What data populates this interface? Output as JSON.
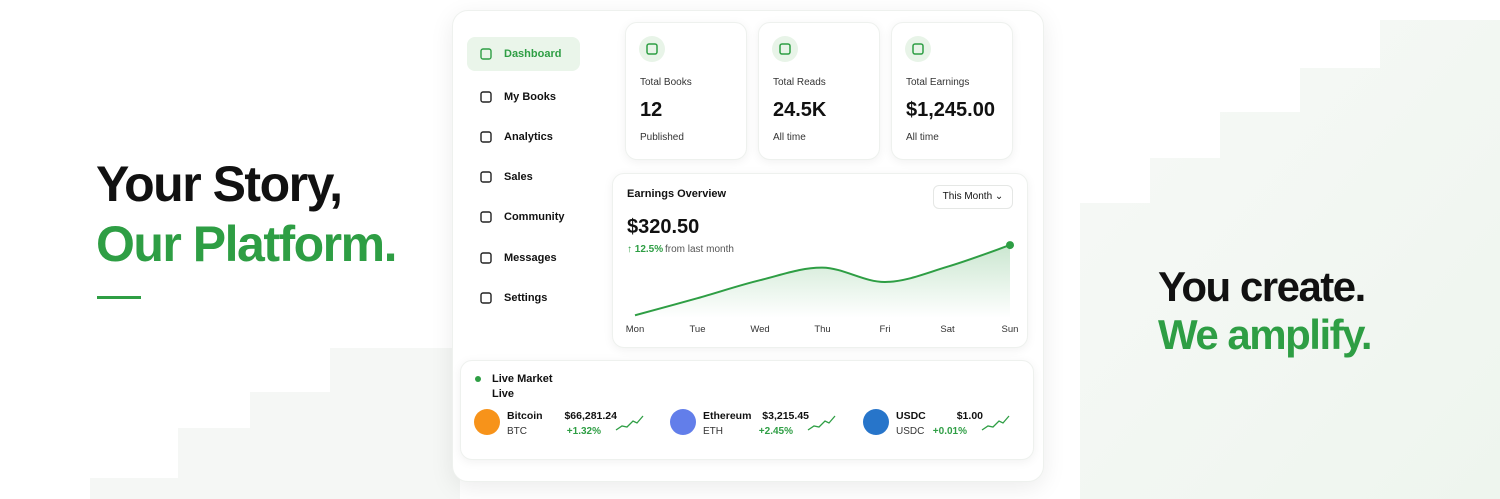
{
  "hero": {
    "line1": "Your Story,",
    "line2": "Our Platform.",
    "right1": "You create.",
    "right2": "We amplify."
  },
  "sidebar": {
    "items": [
      "Dashboard",
      "My Books",
      "Analytics",
      "Sales",
      "Community",
      "Messages",
      "Settings"
    ]
  },
  "stats": [
    {
      "label": "Total Books",
      "value": "12",
      "sub": "Published"
    },
    {
      "label": "Total Reads",
      "value": "24.5K",
      "sub": "All time"
    },
    {
      "label": "Total Earnings",
      "value": "$1,245.00",
      "sub": "All time"
    }
  ],
  "earnings": {
    "amount": "$320.50",
    "change": "↑ 12.5%",
    "change_text": "from last month",
    "dropdown": "This Month"
  },
  "chart_data": {
    "type": "line",
    "title": "Earnings Overview",
    "categories": [
      "Mon",
      "Tue",
      "Wed",
      "Thu",
      "Fri",
      "Sat",
      "Sun"
    ],
    "values": [
      3,
      22,
      42,
      56,
      40,
      57,
      81
    ],
    "ylim": [
      0,
      100
    ],
    "color": "#2e9e44"
  },
  "market": {
    "title": "Live Market",
    "subtitle": "Live",
    "coins": [
      {
        "name": "Bitcoin",
        "symbol": "BTC",
        "price": "$66,281.24",
        "change": "+1.32%"
      },
      {
        "name": "Ethereum",
        "symbol": "ETH",
        "price": "$3,215.45",
        "change": "+2.45%"
      },
      {
        "name": "USDC",
        "symbol": "USDC",
        "price": "$1.00",
        "change": "+0.01%"
      }
    ]
  }
}
